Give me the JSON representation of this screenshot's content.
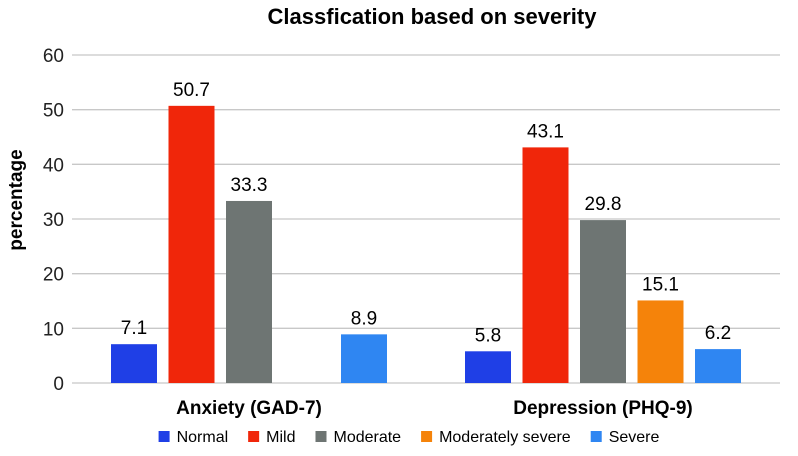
{
  "chart_data": {
    "type": "bar",
    "title": "Classfication based on severity",
    "xlabel": "",
    "ylabel": "percentage",
    "ylim": [
      0,
      60
    ],
    "yticks": [
      0,
      10,
      20,
      30,
      40,
      50,
      60
    ],
    "grid": true,
    "legend_position": "bottom",
    "categories": [
      "Anxiety (GAD-7)",
      "Depression (PHQ-9)"
    ],
    "series": [
      {
        "name": "Normal",
        "color": "#1f3fe6",
        "values": [
          7.1,
          5.8
        ]
      },
      {
        "name": "Mild",
        "color": "#f0260a",
        "values": [
          50.7,
          43.1
        ]
      },
      {
        "name": "Moderate",
        "color": "#6e7573",
        "values": [
          33.3,
          29.8
        ]
      },
      {
        "name": "Moderately severe",
        "color": "#f5830a",
        "values": [
          null,
          15.1
        ]
      },
      {
        "name": "Severe",
        "color": "#2f86f2",
        "values": [
          8.9,
          6.2
        ]
      }
    ]
  }
}
